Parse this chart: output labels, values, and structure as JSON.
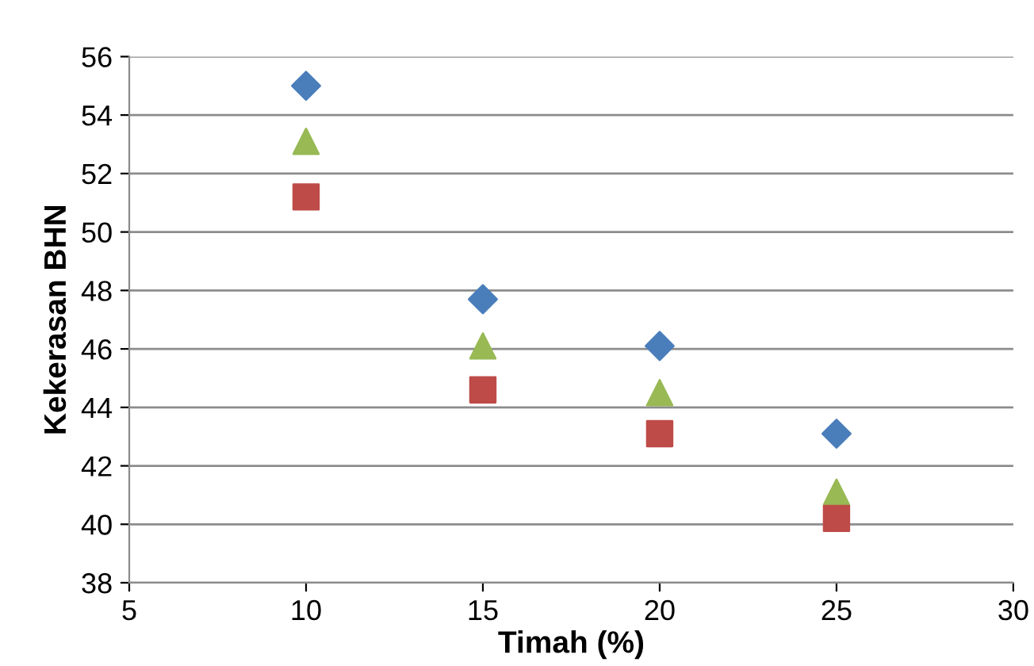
{
  "chart_data": {
    "type": "scatter",
    "xlabel": "Timah (%)",
    "ylabel": "Kekerasan BHN",
    "x": [
      10,
      15,
      20,
      25
    ],
    "series": [
      {
        "color": "#4a7ebb",
        "marker": "diamond",
        "values": [
          55.0,
          47.7,
          46.1,
          43.1
        ]
      },
      {
        "color": "#98b954",
        "marker": "triangle",
        "values": [
          53.1,
          46.1,
          44.5,
          41.1
        ]
      },
      {
        "color": "#be4b48",
        "marker": "square",
        "values": [
          51.2,
          44.6,
          43.1,
          40.2
        ]
      }
    ],
    "xlim": [
      5,
      30
    ],
    "xticks": [
      5,
      10,
      15,
      20,
      25,
      30
    ],
    "ylim": [
      38,
      56
    ],
    "yticks": [
      38,
      40,
      42,
      44,
      46,
      48,
      50,
      52,
      54,
      56
    ],
    "grid": "y",
    "legend": false
  }
}
